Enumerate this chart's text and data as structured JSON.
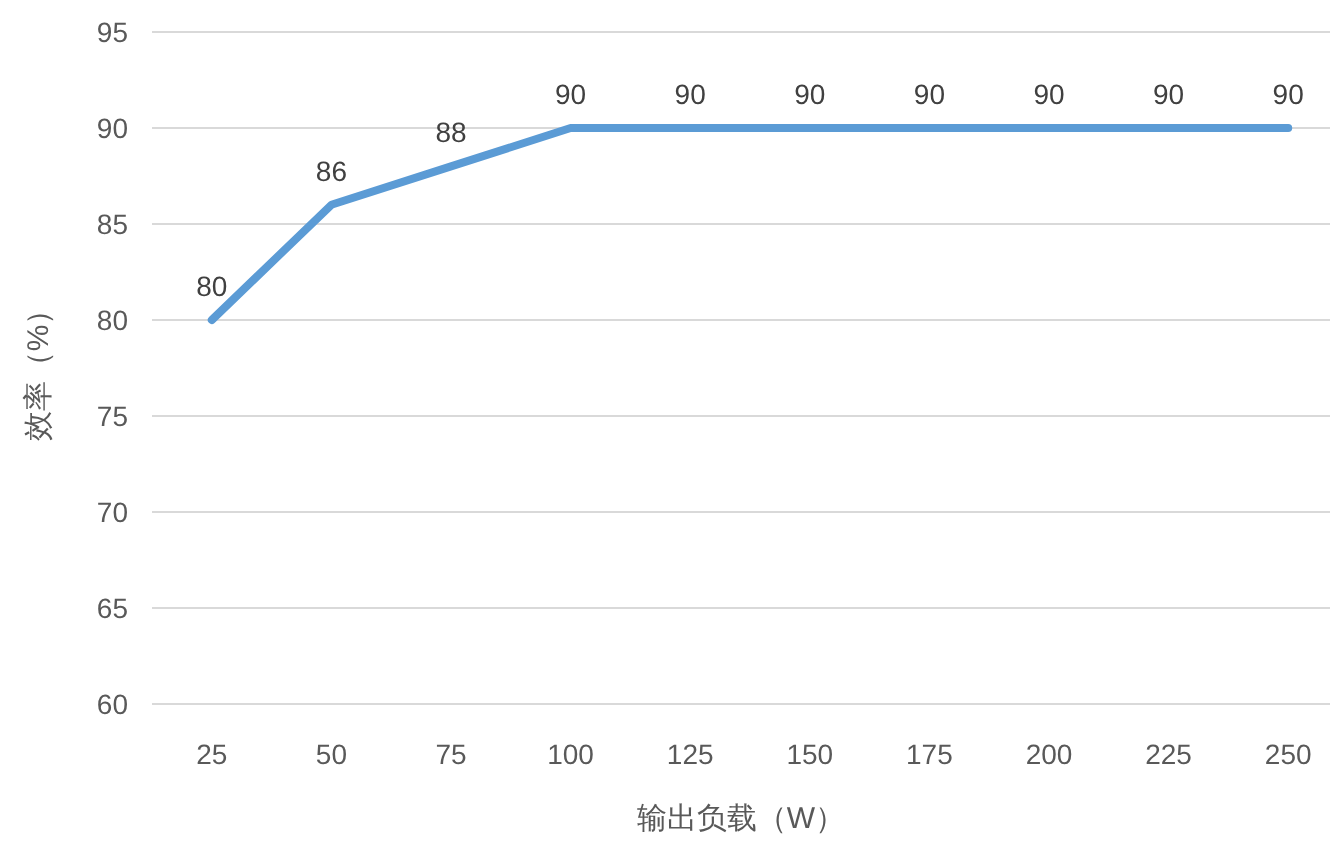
{
  "chart_data": {
    "type": "line",
    "xlabel": "输出负载（W）",
    "ylabel": "效率（%）",
    "categories": [
      "25",
      "50",
      "75",
      "100",
      "125",
      "150",
      "175",
      "200",
      "225",
      "250"
    ],
    "series": [
      {
        "color": "#5b9bd5",
        "values": [
          80,
          86,
          88,
          90,
          90,
          90,
          90,
          90,
          90,
          90
        ]
      }
    ],
    "ylim": [
      60,
      95
    ],
    "yticks": [
      60,
      65,
      70,
      75,
      80,
      85,
      90,
      95
    ],
    "grid": "y",
    "data_labels": true,
    "marker": "none",
    "line_style": "solid"
  }
}
